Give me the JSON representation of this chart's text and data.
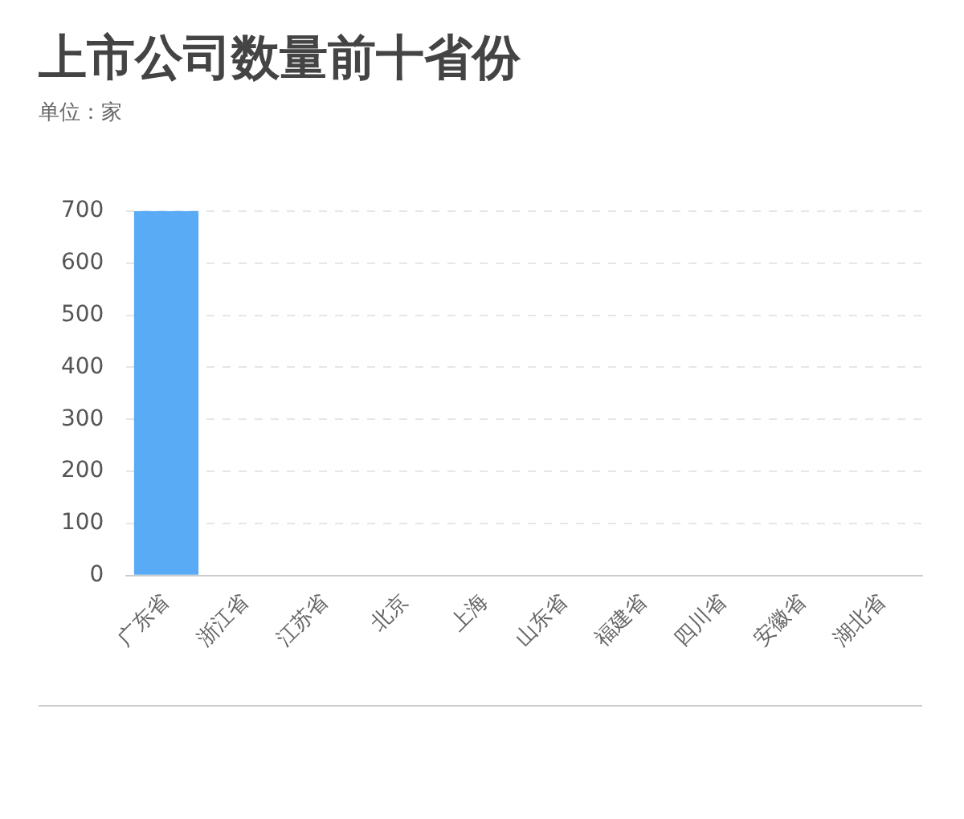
{
  "chart_data": {
    "type": "bar",
    "title": "上市公司数量前十省份",
    "subtitle": "单位：家",
    "categories": [
      "广东省",
      "浙江省",
      "江苏省",
      "北京",
      "上海",
      "山东省",
      "福建省",
      "四川省",
      "安徽省",
      "湖北省"
    ],
    "values": [
      700,
      0,
      0,
      0,
      0,
      0,
      0,
      0,
      0,
      0
    ],
    "color": "#5aabf5",
    "ylim": [
      0,
      700
    ],
    "yticks": [
      0,
      100,
      200,
      300,
      400,
      500,
      600,
      700
    ],
    "grid": "y"
  }
}
